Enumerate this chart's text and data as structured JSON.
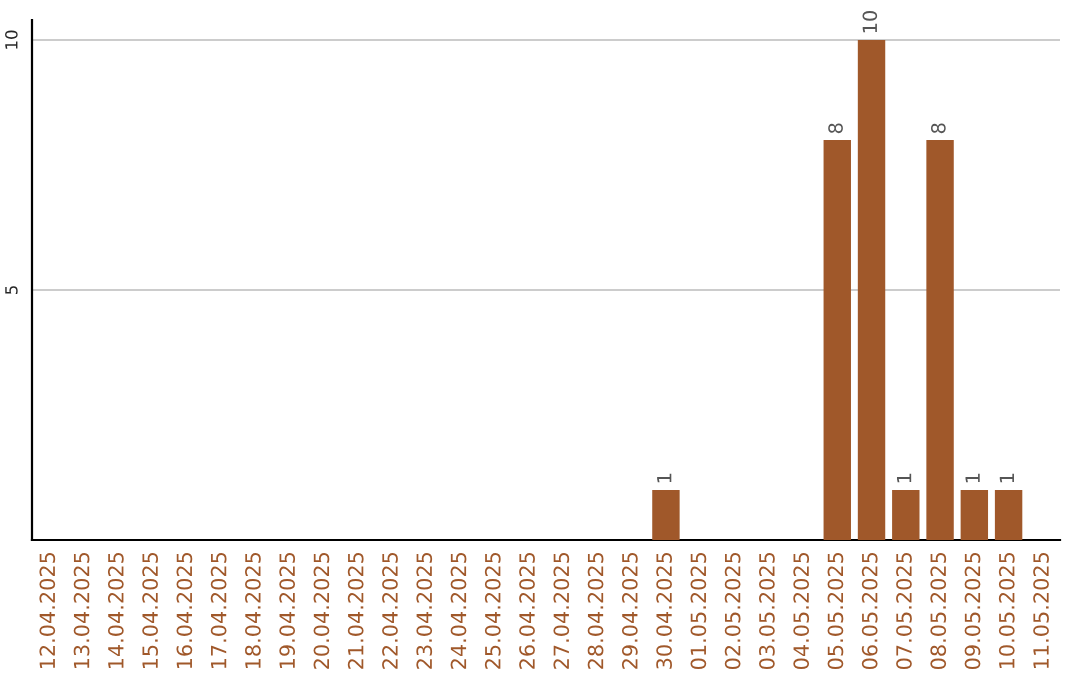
{
  "chart_data": {
    "type": "bar",
    "categories": [
      "12.04.2025",
      "13.04.2025",
      "14.04.2025",
      "15.04.2025",
      "16.04.2025",
      "17.04.2025",
      "18.04.2025",
      "19.04.2025",
      "20.04.2025",
      "21.04.2025",
      "22.04.2025",
      "23.04.2025",
      "24.04.2025",
      "25.04.2025",
      "26.04.2025",
      "27.04.2025",
      "28.04.2025",
      "29.04.2025",
      "30.04.2025",
      "01.05.2025",
      "02.05.2025",
      "03.05.2025",
      "04.05.2025",
      "05.05.2025",
      "06.05.2025",
      "07.05.2025",
      "08.05.2025",
      "09.05.2025",
      "10.05.2025",
      "11.05.2025"
    ],
    "values": [
      0,
      0,
      0,
      0,
      0,
      0,
      0,
      0,
      0,
      0,
      0,
      0,
      0,
      0,
      0,
      0,
      0,
      0,
      1,
      0,
      0,
      0,
      0,
      8,
      10,
      1,
      8,
      1,
      1,
      0
    ],
    "value_labels": [
      null,
      null,
      null,
      null,
      null,
      null,
      null,
      null,
      null,
      null,
      null,
      null,
      null,
      null,
      null,
      null,
      null,
      null,
      "1",
      null,
      null,
      null,
      null,
      "8",
      "10",
      "1",
      "8",
      "1",
      "1",
      null
    ],
    "color": "#a0582a",
    "ylim": [
      0,
      10.4
    ],
    "yticks": [
      5,
      10
    ],
    "grid": "y",
    "legend": false
  }
}
